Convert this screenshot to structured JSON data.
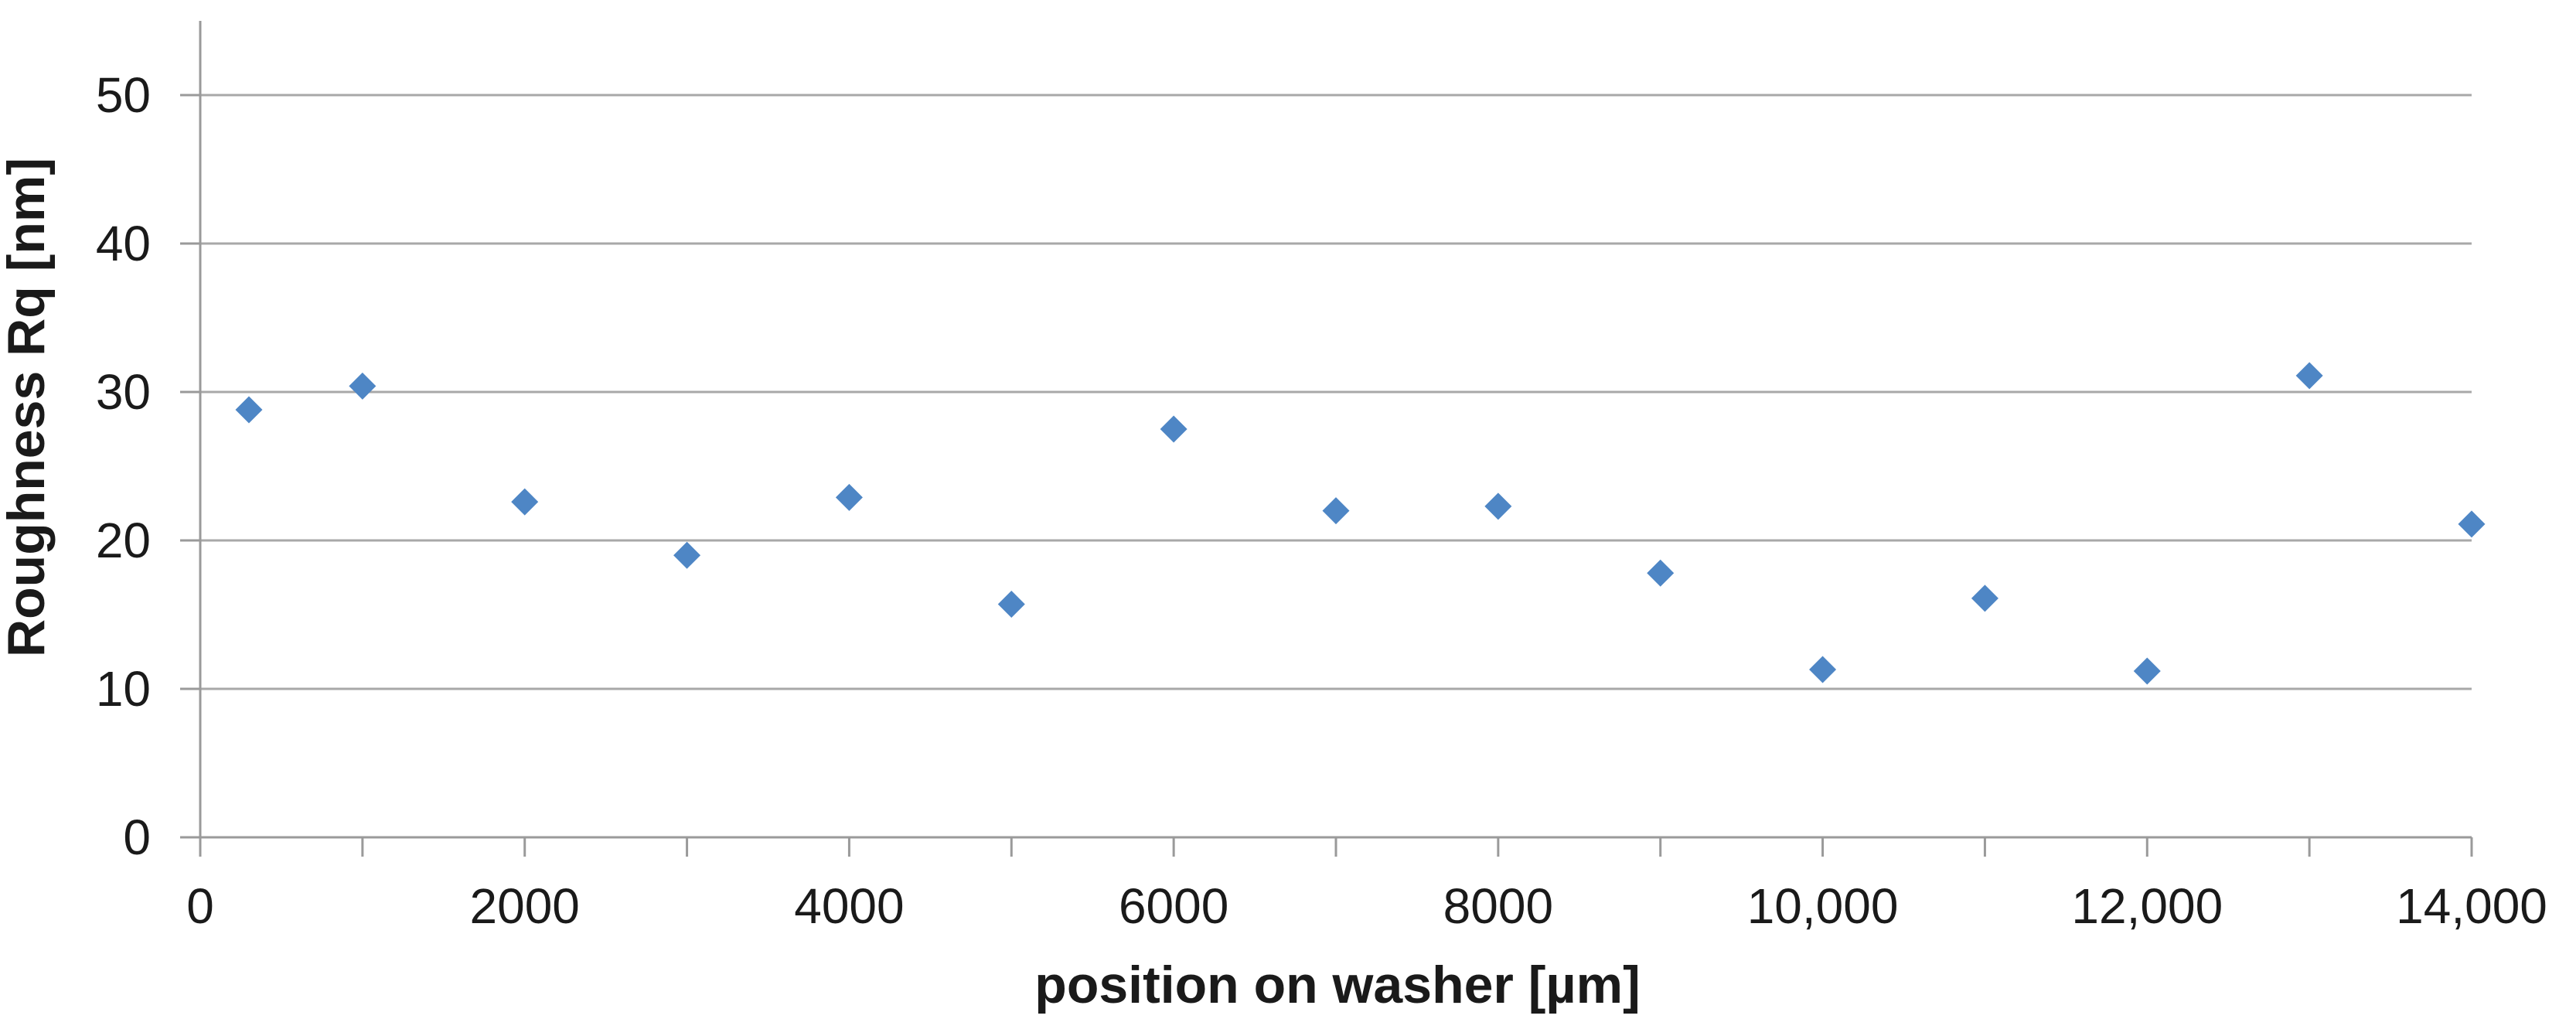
{
  "chart_data": {
    "type": "scatter",
    "title": "",
    "xlabel": "position on washer [µm]",
    "ylabel": "Roughness Rq [nm]",
    "series": [
      {
        "name": "Roughness Rq",
        "marker": "diamond",
        "color": "#4e86c5",
        "points": [
          [
            300,
            28.8
          ],
          [
            1000,
            30.4
          ],
          [
            2000,
            22.6
          ],
          [
            3000,
            19.0
          ],
          [
            4000,
            22.9
          ],
          [
            5000,
            15.7
          ],
          [
            6000,
            27.5
          ],
          [
            7000,
            22.0
          ],
          [
            8000,
            22.3
          ],
          [
            9000,
            17.8
          ],
          [
            10000,
            11.3
          ],
          [
            11000,
            16.1
          ],
          [
            12000,
            11.2
          ],
          [
            13000,
            31.1
          ],
          [
            14000,
            21.1
          ]
        ]
      }
    ],
    "xlim": [
      0,
      14000
    ],
    "ylim": [
      0,
      55
    ],
    "x_minor_tick_step": 1000,
    "x_label_step": 2000,
    "y_tick_step": 10,
    "y_top_gridline": 50,
    "x_tick_labels": [
      "0",
      "2000",
      "4000",
      "6000",
      "8000",
      "10,000",
      "12,000",
      "14,000"
    ],
    "y_tick_labels": [
      "0",
      "10",
      "20",
      "30",
      "40",
      "50"
    ],
    "grid": "horizontal-major",
    "legend": null,
    "colors": {
      "grid": "#a8a8a8",
      "axis": "#9a9a9a",
      "text": "#1a1a1a",
      "background": "#ffffff"
    }
  }
}
